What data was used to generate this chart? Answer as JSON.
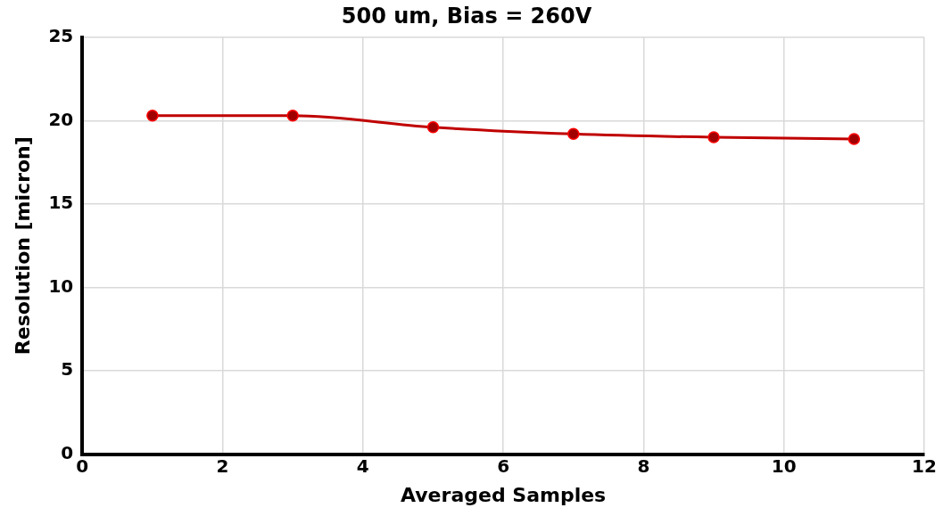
{
  "chart_data": {
    "type": "line",
    "title": "500 um, Bias = 260V",
    "xlabel": "Averaged Samples",
    "ylabel": "Resolution [micron]",
    "x": [
      1,
      3,
      5,
      7,
      9,
      11
    ],
    "series": [
      {
        "color": "#c00000",
        "values": [
          20.3,
          20.3,
          19.6,
          19.2,
          19.0,
          18.9
        ]
      }
    ],
    "xlim": [
      0,
      12
    ],
    "xticks": [
      0,
      2,
      4,
      6,
      8,
      10,
      12
    ],
    "ylim": [
      0,
      25
    ],
    "yticks": [
      0,
      5,
      10,
      15,
      20,
      25
    ],
    "grid": true,
    "legend": false,
    "marker": "circle",
    "line_style": "solid"
  }
}
